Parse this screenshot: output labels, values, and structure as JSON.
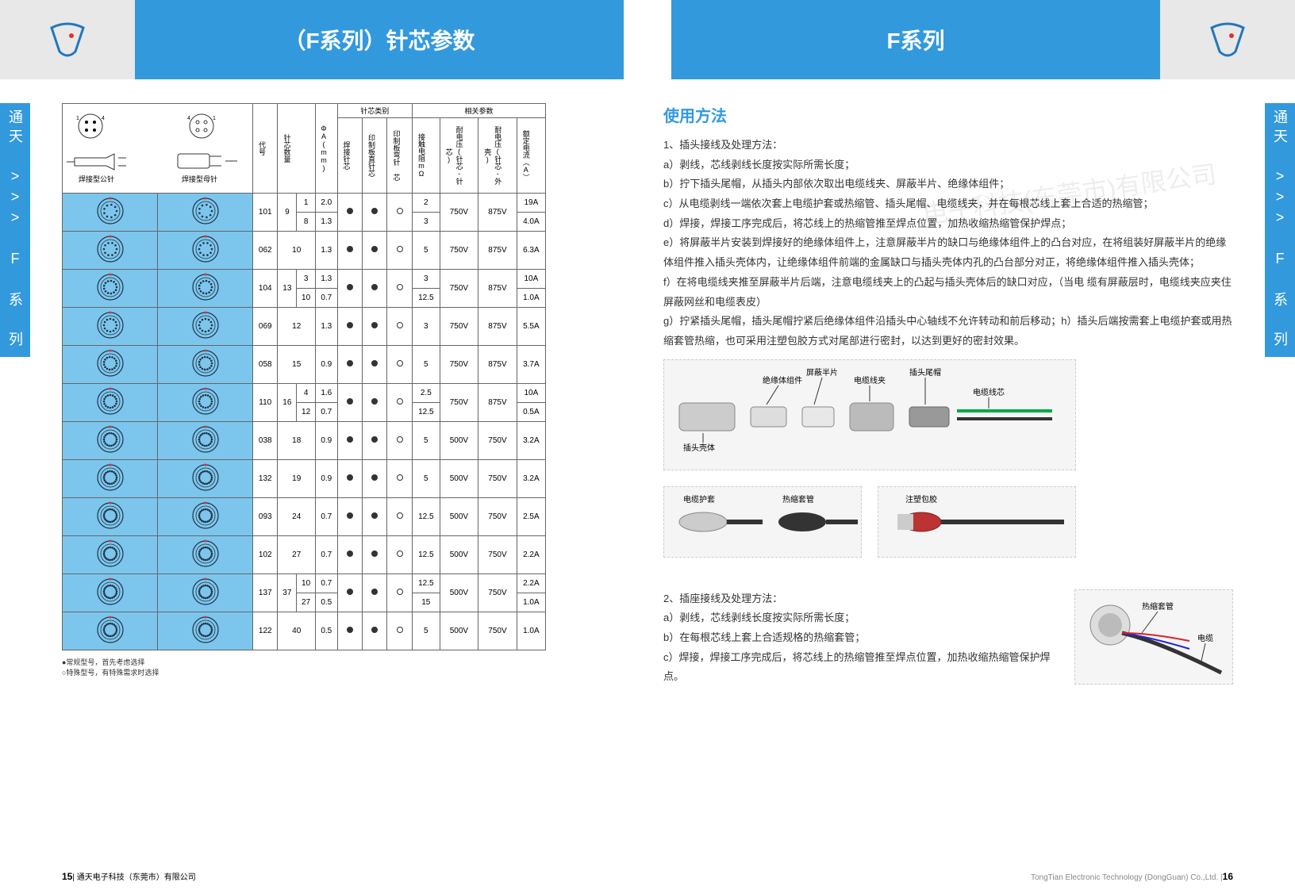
{
  "header": {
    "title_left": "（F系列）针芯参数",
    "title_right": "F系列"
  },
  "side_label": "通天 >>> F 系 列",
  "table": {
    "group_headers": {
      "pin_type": "针芯类别",
      "params": "相关参数"
    },
    "col_headers": {
      "diagram_male": "焊接型公针",
      "diagram_female": "焊接型母针",
      "code": "代号",
      "pin_count": "针芯数量",
      "phi": "ΦA(mm)",
      "solder": "焊接针芯",
      "pcb_straight": "印制板直针芯",
      "pcb_bent": "印制板弯针 芯",
      "resistance": "接触电阻mΩ",
      "voltage1": "耐电压(针芯-针芯)",
      "voltage2": "耐电压(针芯-外壳)",
      "current": "额定电流（A）"
    },
    "rows": [
      {
        "code": "101",
        "pins": "9",
        "sub": [
          {
            "n": "1",
            "phi": "2.0",
            "r": "2",
            "i": "19A"
          },
          {
            "n": "8",
            "phi": "1.3",
            "r": "3",
            "i": "4.0A"
          }
        ],
        "v1": "750V",
        "v2": "875V",
        "dots": [
          "f",
          "f",
          "o"
        ]
      },
      {
        "code": "062",
        "pins": "10",
        "phi": "1.3",
        "r": "5",
        "v1": "750V",
        "v2": "875V",
        "i": "6.3A",
        "dots": [
          "f",
          "f",
          "o"
        ]
      },
      {
        "code": "104",
        "pins": "13",
        "sub": [
          {
            "n": "3",
            "phi": "1.3",
            "r": "3",
            "i": "10A"
          },
          {
            "n": "10",
            "phi": "0.7",
            "r": "12.5",
            "i": "1.0A"
          }
        ],
        "v1": "750V",
        "v2": "875V",
        "dots": [
          "f",
          "f",
          "o"
        ]
      },
      {
        "code": "069",
        "pins": "12",
        "phi": "1.3",
        "r": "3",
        "v1": "750V",
        "v2": "875V",
        "i": "5.5A",
        "dots": [
          "f",
          "f",
          "o"
        ]
      },
      {
        "code": "058",
        "pins": "15",
        "phi": "0.9",
        "r": "5",
        "v1": "750V",
        "v2": "875V",
        "i": "3.7A",
        "dots": [
          "f",
          "f",
          "o"
        ]
      },
      {
        "code": "110",
        "pins": "16",
        "sub": [
          {
            "n": "4",
            "phi": "1.6",
            "r": "2.5",
            "i": "10A"
          },
          {
            "n": "12",
            "phi": "0.7",
            "r": "12.5",
            "i": "0.5A"
          }
        ],
        "v1": "750V",
        "v2": "875V",
        "dots": [
          "f",
          "f",
          "o"
        ]
      },
      {
        "code": "038",
        "pins": "18",
        "phi": "0.9",
        "r": "5",
        "v1": "500V",
        "v2": "750V",
        "i": "3.2A",
        "dots": [
          "f",
          "f",
          "o"
        ]
      },
      {
        "code": "132",
        "pins": "19",
        "phi": "0.9",
        "r": "5",
        "v1": "500V",
        "v2": "750V",
        "i": "3.2A",
        "dots": [
          "f",
          "f",
          "o"
        ]
      },
      {
        "code": "093",
        "pins": "24",
        "phi": "0.7",
        "r": "12.5",
        "v1": "500V",
        "v2": "750V",
        "i": "2.5A",
        "dots": [
          "f",
          "f",
          "o"
        ]
      },
      {
        "code": "102",
        "pins": "27",
        "phi": "0.7",
        "r": "12.5",
        "v1": "500V",
        "v2": "750V",
        "i": "2.2A",
        "dots": [
          "f",
          "f",
          "o"
        ]
      },
      {
        "code": "137",
        "pins": "37",
        "sub": [
          {
            "n": "10",
            "phi": "0.7",
            "r": "12.5",
            "i": "2.2A"
          },
          {
            "n": "27",
            "phi": "0.5",
            "r": "15",
            "i": "1.0A"
          }
        ],
        "v1": "500V",
        "v2": "750V",
        "dots": [
          "f",
          "f",
          "o"
        ]
      },
      {
        "code": "122",
        "pins": "40",
        "phi": "0.5",
        "r": "5",
        "v1": "500V",
        "v2": "750V",
        "i": "1.0A",
        "dots": [
          "f",
          "f",
          "o"
        ]
      }
    ],
    "notes": [
      "●常规型号，首先考虑选择",
      "○特殊型号，有特殊需求时选择"
    ]
  },
  "instructions": {
    "title": "使用方法",
    "section1_head": "1、插头接线及处理方法：",
    "section1": [
      "a）剥线，芯线剥线长度按实际所需长度；",
      "b）拧下插头尾帽，从插头内部依次取出电缆线夹、屏蔽半片、绝缘体组件；",
      "c）从电缆剥线一端依次套上电缆护套或热缩管、插头尾帽、电缆线夹，并在每根芯线上套上合适的热缩管；",
      "d）焊接，焊接工序完成后，将芯线上的热缩管推至焊点位置，加热收缩热缩管保护焊点；",
      "e）将屏蔽半片安装到焊接好的绝缘体组件上，注意屏蔽半片的缺口与绝缘体组件上的凸台对应，在将组装好屏蔽半片的绝缘体组件推入插头壳体内，让绝缘体组件前端的金属缺口与插头壳体内孔的凸台部分对正，将绝缘体组件推入插头壳体；",
      "f）在将电缆线夹推至屏蔽半片后端，注意电缆线夹上的凸起与插头壳体后的缺口对应，（当电 缆有屏蔽层时，电缆线夹应夹住屏蔽网丝和电缆表皮）",
      "g）拧紧插头尾帽，插头尾帽拧紧后绝缘体组件沿插头中心轴线不允许转动和前后移动；h）插头后端按需套上电缆护套或用热缩套管热缩，也可采用注塑包胶方式对尾部进行密封，以达到更好的密封效果。"
    ],
    "section2_head": "2、插座接线及处理方法：",
    "section2": [
      "a）剥线，芯线剥线长度按实际所需长度；",
      "b）在每根芯线上套上合适规格的热缩套管；",
      "c）焊接，焊接工序完成后，将芯线上的热缩管推至焊点位置，加热收缩热缩管保护焊点。"
    ],
    "labels": {
      "insulator": "绝缘体组件",
      "shield": "屏蔽半片",
      "clamp": "电缆线夹",
      "tailcap": "插头尾帽",
      "core": "电缆线芯",
      "shell": "插头壳体",
      "sleeve": "电缆护套",
      "heatshrink": "热缩套管",
      "molding": "注塑包胶",
      "cable": "电缆"
    }
  },
  "footer": {
    "left_page": "15",
    "left_company": "通天电子科技（东莞市）有限公司",
    "right_company": "TongTian Electronic Technology (DongGuan) Co.,Ltd.",
    "right_page": "16"
  },
  "colors": {
    "brand": "#3399dd",
    "table_cell": "#7cc6ed",
    "border": "#666666"
  }
}
